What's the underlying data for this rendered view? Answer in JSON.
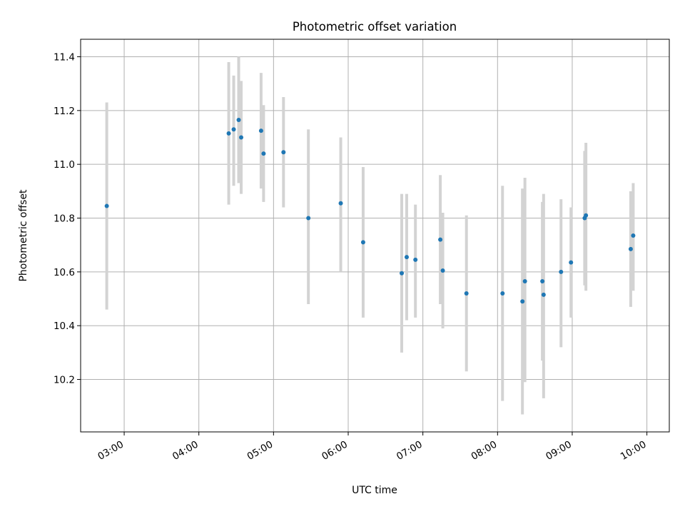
{
  "chart_data": {
    "type": "scatter",
    "title": "Photometric offset variation",
    "xlabel": "UTC time",
    "ylabel": "Photometric offset",
    "x_scale": "time",
    "xlim": [
      "02:25",
      "10:18"
    ],
    "ylim": [
      10.005,
      11.465
    ],
    "x_ticks": [
      "03:00",
      "04:00",
      "05:00",
      "06:00",
      "07:00",
      "08:00",
      "09:00",
      "10:00"
    ],
    "y_ticks": [
      10.2,
      10.4,
      10.6,
      10.8,
      11.0,
      11.2,
      11.4
    ],
    "y_tick_labels": [
      "10.2",
      "10.4",
      "10.6",
      "10.8",
      "11.0",
      "11.2",
      "11.4"
    ],
    "grid": true,
    "legend": "none",
    "colors": {
      "point": "#1f77b4",
      "errorbar": "#d3d3d3",
      "grid": "#b0b0b0"
    },
    "points": [
      {
        "time": "02:46",
        "y": 10.845,
        "lo": 10.46,
        "hi": 11.23
      },
      {
        "time": "04:24",
        "y": 11.115,
        "lo": 10.85,
        "hi": 11.38
      },
      {
        "time": "04:28",
        "y": 11.13,
        "lo": 10.92,
        "hi": 11.33
      },
      {
        "time": "04:32",
        "y": 11.165,
        "lo": 10.93,
        "hi": 11.4
      },
      {
        "time": "04:34",
        "y": 11.1,
        "lo": 10.89,
        "hi": 11.31
      },
      {
        "time": "04:50",
        "y": 11.125,
        "lo": 10.91,
        "hi": 11.34
      },
      {
        "time": "04:52",
        "y": 11.04,
        "lo": 10.86,
        "hi": 11.22
      },
      {
        "time": "05:08",
        "y": 11.045,
        "lo": 10.84,
        "hi": 11.25
      },
      {
        "time": "05:28",
        "y": 10.8,
        "lo": 10.48,
        "hi": 11.13
      },
      {
        "time": "05:54",
        "y": 10.855,
        "lo": 10.6,
        "hi": 11.1
      },
      {
        "time": "06:12",
        "y": 10.71,
        "lo": 10.43,
        "hi": 10.99
      },
      {
        "time": "06:43",
        "y": 10.595,
        "lo": 10.3,
        "hi": 10.89
      },
      {
        "time": "06:47",
        "y": 10.655,
        "lo": 10.42,
        "hi": 10.89
      },
      {
        "time": "06:54",
        "y": 10.645,
        "lo": 10.43,
        "hi": 10.85
      },
      {
        "time": "07:14",
        "y": 10.72,
        "lo": 10.48,
        "hi": 10.96
      },
      {
        "time": "07:16",
        "y": 10.605,
        "lo": 10.39,
        "hi": 10.82
      },
      {
        "time": "07:35",
        "y": 10.52,
        "lo": 10.23,
        "hi": 10.81
      },
      {
        "time": "08:04",
        "y": 10.52,
        "lo": 10.12,
        "hi": 10.92
      },
      {
        "time": "08:20",
        "y": 10.49,
        "lo": 10.07,
        "hi": 10.91
      },
      {
        "time": "08:22",
        "y": 10.565,
        "lo": 10.19,
        "hi": 10.95
      },
      {
        "time": "08:36",
        "y": 10.565,
        "lo": 10.27,
        "hi": 10.86
      },
      {
        "time": "08:37",
        "y": 10.515,
        "lo": 10.13,
        "hi": 10.89
      },
      {
        "time": "08:51",
        "y": 10.6,
        "lo": 10.32,
        "hi": 10.87
      },
      {
        "time": "08:59",
        "y": 10.635,
        "lo": 10.43,
        "hi": 10.84
      },
      {
        "time": "09:10",
        "y": 10.8,
        "lo": 10.55,
        "hi": 11.05
      },
      {
        "time": "09:11",
        "y": 10.81,
        "lo": 10.53,
        "hi": 11.08
      },
      {
        "time": "09:47",
        "y": 10.685,
        "lo": 10.47,
        "hi": 10.9
      },
      {
        "time": "09:49",
        "y": 10.735,
        "lo": 10.53,
        "hi": 10.93
      }
    ]
  }
}
